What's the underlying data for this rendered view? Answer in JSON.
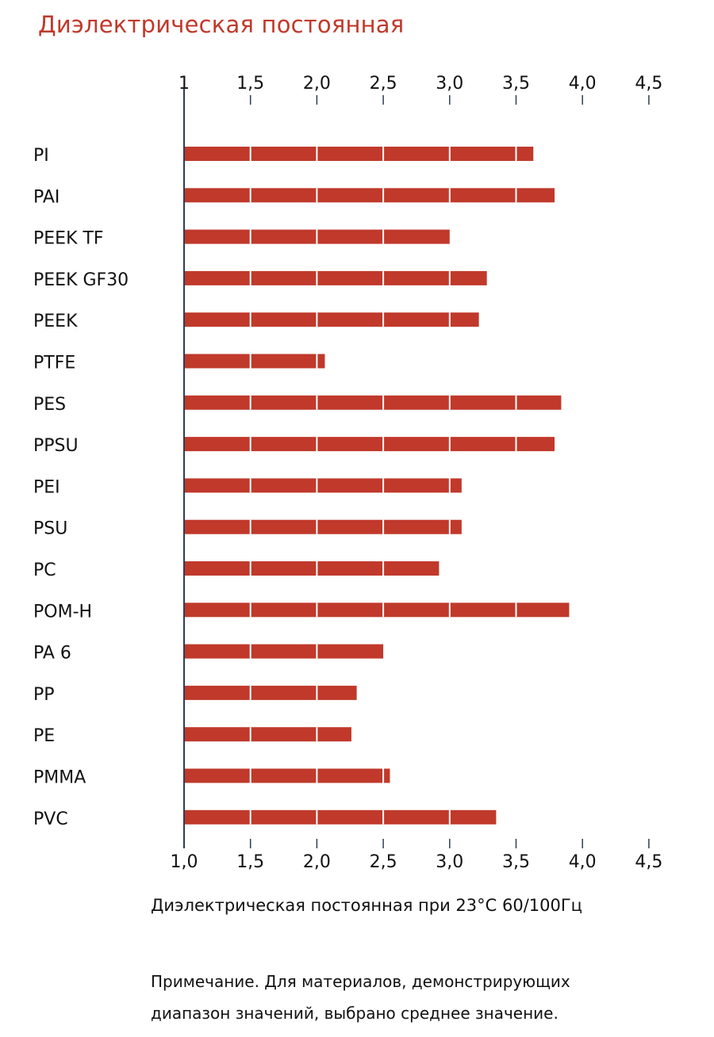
{
  "title": "Диэлектрическая постоянная",
  "chart_data": {
    "type": "bar",
    "orientation": "horizontal",
    "categories": [
      "PI",
      "PAI",
      "PEEK TF",
      "PEEK GF30",
      "PEEK",
      "PTFE",
      "PES",
      "PPSU",
      "PEI",
      "PSU",
      "PC",
      "POM-H",
      "PA 6",
      "PP",
      "PE",
      "PMMA",
      "PVC"
    ],
    "values": [
      3.63,
      3.79,
      3.0,
      3.28,
      3.22,
      2.06,
      3.84,
      3.79,
      3.09,
      3.09,
      2.92,
      3.9,
      2.5,
      2.3,
      2.26,
      2.55,
      3.35
    ],
    "xlim": [
      1.0,
      4.5
    ],
    "top_ticks": [
      "1",
      "1,5",
      "2,0",
      "2,5",
      "3,0",
      "3,5",
      "4,0",
      "4,5"
    ],
    "bottom_ticks": [
      "1,0",
      "1,5",
      "2,0",
      "2,5",
      "3,0",
      "3,5",
      "4,0",
      "4,5"
    ],
    "tick_values": [
      1.0,
      1.5,
      2.0,
      2.5,
      3.0,
      3.5,
      4.0,
      4.5
    ],
    "xlabel": "Диэлектрическая постоянная при 23°C 60/100Гц",
    "bar_color": "#c0392b",
    "grid": "white divider lines through bars"
  },
  "note": {
    "line1": "Примечание. Для материалов, демонстрирующих",
    "line2": "диапазон значений, выбрано среднее значение."
  }
}
